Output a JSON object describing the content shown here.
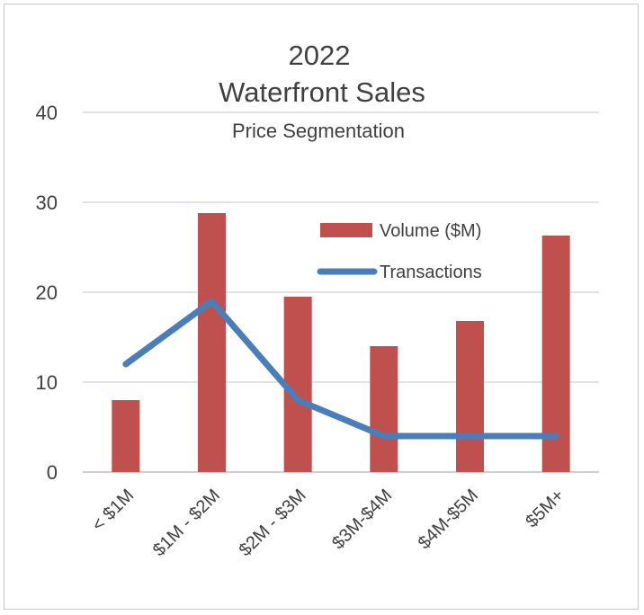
{
  "chart_data": {
    "type": "bar",
    "title": "2022",
    "title_line2": "Waterfront Sales",
    "subtitle": "Price Segmentation",
    "categories": [
      "< $1M",
      "$1M - $2M",
      "$2M - $3M",
      "$3M-$4M",
      "$4M-$5M",
      "$5M+"
    ],
    "series": [
      {
        "name": "Volume ($M)",
        "type": "bar",
        "color": "#c0504d",
        "values": [
          8,
          28.8,
          19.5,
          14,
          16.8,
          26.3
        ]
      },
      {
        "name": "Transactions",
        "type": "line",
        "color": "#4a7ebb",
        "values": [
          12,
          19,
          8,
          4,
          4,
          4
        ]
      }
    ],
    "ylim": [
      0,
      40
    ],
    "yticks": [
      "0",
      "10",
      "20",
      "30",
      "40"
    ],
    "grid": true,
    "legend": "upper-right inside plot",
    "xlabel": "",
    "ylabel": ""
  }
}
